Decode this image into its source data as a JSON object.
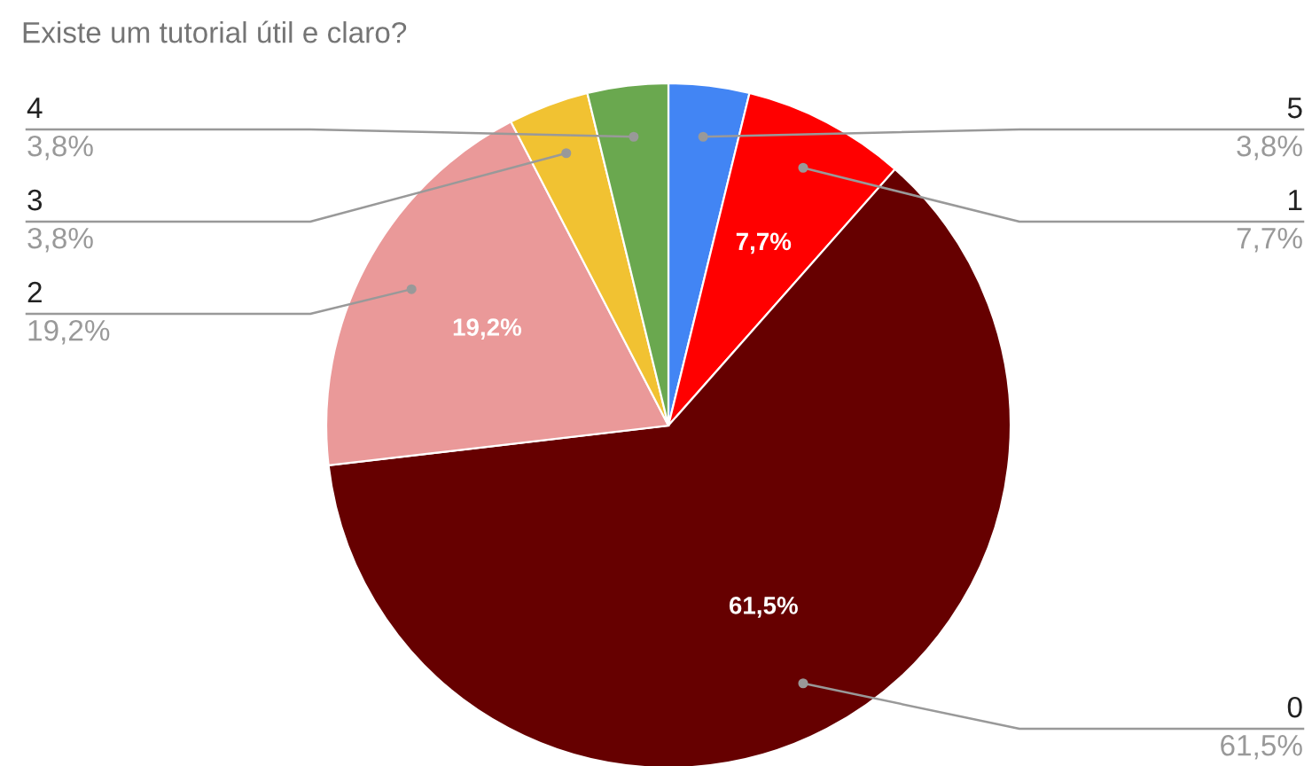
{
  "chart_data": {
    "type": "pie",
    "title": "Existe um tutorial útil e claro?",
    "categories": [
      "5",
      "1",
      "0",
      "2",
      "3",
      "4"
    ],
    "values": [
      3.8,
      7.7,
      61.5,
      19.2,
      3.8,
      3.8
    ],
    "value_labels": [
      "3,8%",
      "7,7%",
      "61,5%",
      "19,2%",
      "3,8%",
      "3,8%"
    ],
    "colors": [
      "#4285f4",
      "#ff0000",
      "#660000",
      "#ea9999",
      "#f1c232",
      "#6aa84f"
    ],
    "legend": false
  }
}
